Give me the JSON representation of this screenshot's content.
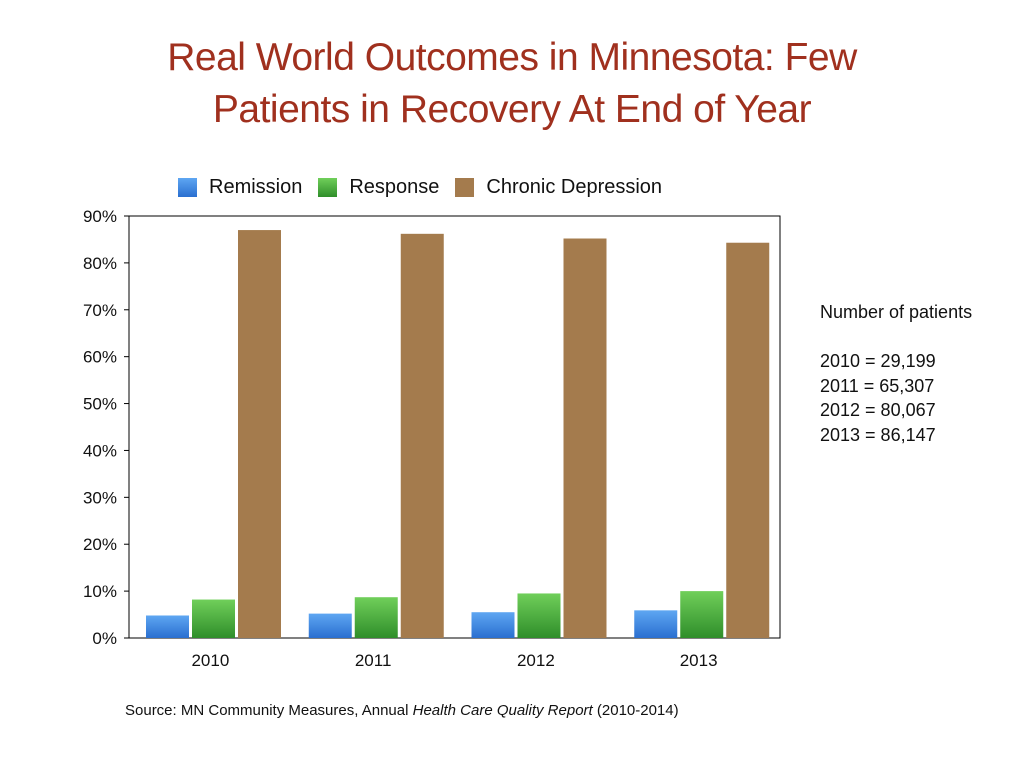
{
  "title": {
    "line1": "Real World Outcomes in Minnesota: Few",
    "line2": "Patients in Recovery At End of Year"
  },
  "notes": {
    "heading": "Number of patients",
    "lines": [
      "2010 = 29,199",
      "2011 = 65,307",
      "2012 = 80,067",
      "2013 = 86,147"
    ]
  },
  "source": {
    "prefix": "Source: MN Community Measures, Annual ",
    "italic": "Health Care Quality Report",
    "suffix": " (2010-2014)"
  },
  "chart_data": {
    "type": "bar",
    "categories": [
      "2010",
      "2011",
      "2012",
      "2013"
    ],
    "series": [
      {
        "name": "Remission",
        "values": [
          4.8,
          5.2,
          5.5,
          5.9
        ],
        "color": "#3a86e3"
      },
      {
        "name": "Response",
        "values": [
          8.2,
          8.7,
          9.5,
          10.0
        ],
        "color": "#4aab3a"
      },
      {
        "name": "Chronic Depression",
        "values": [
          87.0,
          86.2,
          85.2,
          84.3
        ],
        "color": "#a47b4d"
      }
    ],
    "ylim": [
      0,
      90
    ],
    "yticks": [
      "0%",
      "10%",
      "20%",
      "30%",
      "40%",
      "50%",
      "60%",
      "70%",
      "80%",
      "90%"
    ],
    "grid": false,
    "legend": "top"
  }
}
